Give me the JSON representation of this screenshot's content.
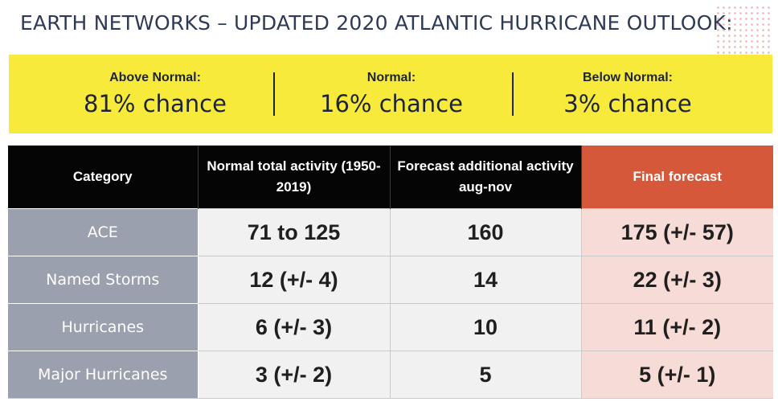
{
  "title": "EARTH NETWORKS – UPDATED 2020 ATLANTIC HURRICANE OUTLOOK:",
  "probabilities": [
    {
      "label": "Above Normal:",
      "value": "81% chance"
    },
    {
      "label": "Normal:",
      "value": "16% chance"
    },
    {
      "label": "Below Normal:",
      "value": "3% chance"
    }
  ],
  "table": {
    "headers": [
      "Category",
      "Normal total activity (1950-2019)",
      "Forecast additional activity aug-nov",
      "Final forecast"
    ],
    "rows": [
      {
        "category": "ACE",
        "normal": "71 to 125",
        "forecast": "160",
        "final": "175 (+/- 57)"
      },
      {
        "category": "Named Storms",
        "normal": "12 (+/- 4)",
        "forecast": "14",
        "final": "22 (+/- 3)"
      },
      {
        "category": "Hurricanes",
        "normal": "6 (+/- 3)",
        "forecast": "10",
        "final": "11 (+/- 2)"
      },
      {
        "category": "Major Hurricanes",
        "normal": "3 (+/- 2)",
        "forecast": "5",
        "final": "5 (+/- 1)"
      }
    ]
  },
  "colors": {
    "banner": "#f7ea3a",
    "header": "#050505",
    "final_header": "#d6583a",
    "final_cells": "#f7dbd6",
    "category_cells": "#9aa0ad",
    "title": "#2f3a57"
  }
}
